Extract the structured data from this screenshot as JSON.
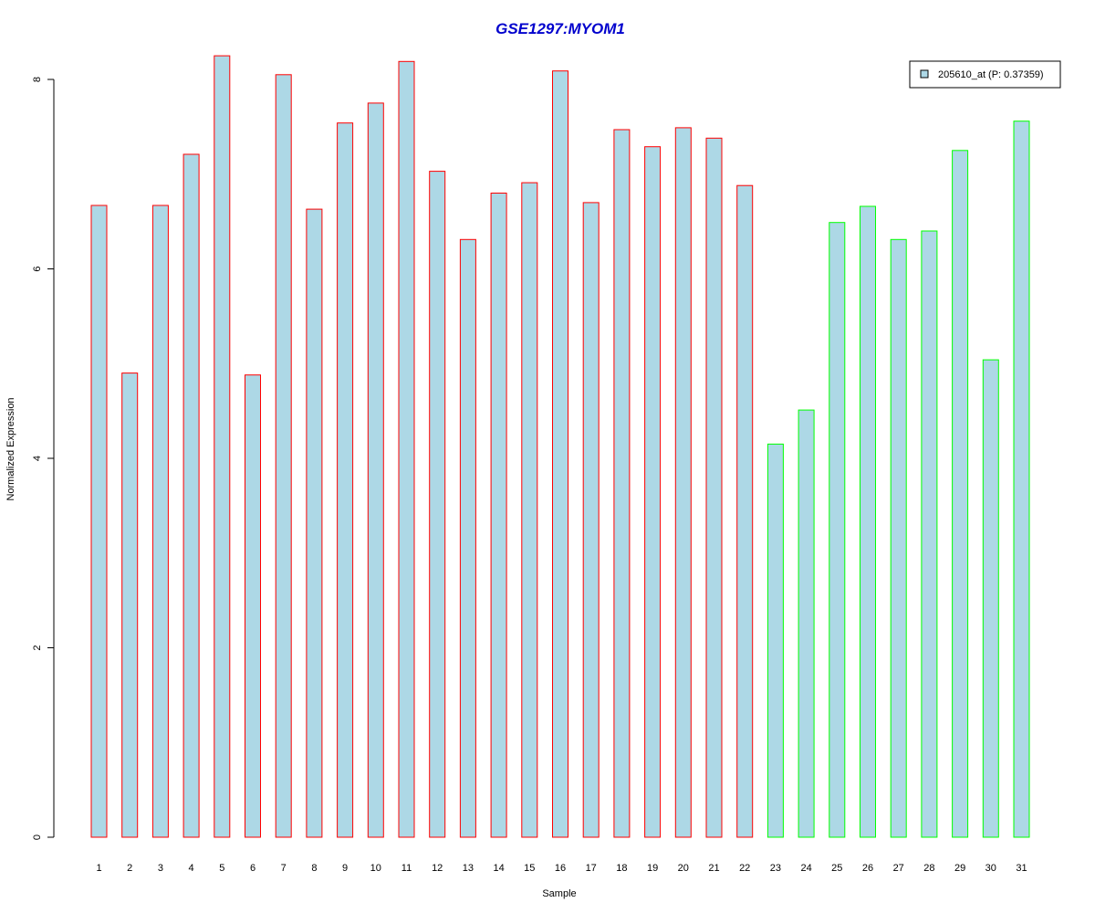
{
  "chart_data": {
    "type": "bar",
    "title": "GSE1297:MYOM1",
    "title_color": "#0000cd",
    "xlabel": "Sample",
    "ylabel": "Normalized Expression",
    "ylim": [
      0,
      8.5
    ],
    "yticks": [
      0,
      2,
      4,
      6,
      8
    ],
    "grid": false,
    "legend_position": "top-right",
    "fill_color": "#add8e6",
    "categories": [
      "1",
      "2",
      "3",
      "4",
      "5",
      "6",
      "7",
      "8",
      "9",
      "10",
      "11",
      "12",
      "13",
      "14",
      "15",
      "16",
      "17",
      "18",
      "19",
      "20",
      "21",
      "22",
      "23",
      "24",
      "25",
      "26",
      "27",
      "28",
      "29",
      "30",
      "31"
    ],
    "series": [
      {
        "name": "205610_at (P: 0.37359)",
        "values": [
          6.67,
          4.9,
          6.67,
          7.21,
          8.25,
          4.88,
          8.05,
          6.63,
          7.54,
          7.75,
          8.19,
          7.03,
          6.31,
          6.8,
          6.91,
          8.09,
          6.7,
          7.47,
          7.29,
          7.49,
          7.38,
          6.88,
          4.15,
          4.51,
          6.49,
          6.66,
          6.31,
          6.4,
          7.25,
          5.04,
          7.56
        ],
        "outline_colors": [
          "#ff0000",
          "#ff0000",
          "#ff0000",
          "#ff0000",
          "#ff0000",
          "#ff0000",
          "#ff0000",
          "#ff0000",
          "#ff0000",
          "#ff0000",
          "#ff0000",
          "#ff0000",
          "#ff0000",
          "#ff0000",
          "#ff0000",
          "#ff0000",
          "#ff0000",
          "#ff0000",
          "#ff0000",
          "#ff0000",
          "#ff0000",
          "#ff0000",
          "#00ff00",
          "#00ff00",
          "#00ff00",
          "#00ff00",
          "#00ff00",
          "#00ff00",
          "#00ff00",
          "#00ff00",
          "#00ff00"
        ]
      }
    ]
  }
}
